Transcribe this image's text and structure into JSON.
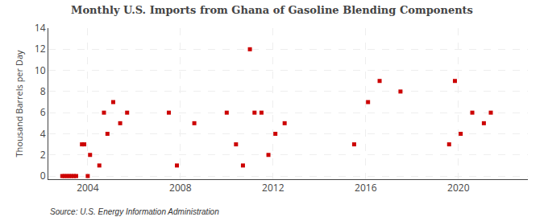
{
  "chart_data": {
    "type": "scatter",
    "title": "Monthly U.S. Imports from Ghana of Gasoline Blending Components",
    "ylabel": "Thousand Barrels per Day",
    "annotations": [
      "Source: U.S. Energy Information Administration"
    ],
    "color": "#cc0000",
    "marker": "square",
    "grid": true,
    "xlim": [
      2002.3,
      2023.0
    ],
    "ylim": [
      -0.3,
      14.0
    ],
    "xticks": [
      2004,
      2008,
      2012,
      2016,
      2020
    ],
    "yticks": [
      0,
      2,
      4,
      6,
      8,
      10,
      12,
      14
    ],
    "x": [
      2002.9,
      2003.0,
      2003.1,
      2003.2,
      2003.3,
      2003.4,
      2003.5,
      2003.75,
      2003.85,
      2004.0,
      2004.1,
      2004.5,
      2004.7,
      2004.85,
      2005.1,
      2005.4,
      2005.7,
      2007.5,
      2007.85,
      2008.6,
      2010.0,
      2010.4,
      2010.7,
      2011.0,
      2011.2,
      2011.5,
      2011.8,
      2012.1,
      2012.5,
      2015.5,
      2016.1,
      2016.6,
      2017.5,
      2019.6,
      2019.85,
      2020.1,
      2020.6,
      2021.1,
      2021.4
    ],
    "values": [
      0.0,
      0.0,
      0.0,
      0.0,
      0.0,
      0.0,
      0.0,
      3.0,
      3.0,
      0.0,
      2.0,
      1.0,
      6.0,
      4.0,
      7.0,
      5.0,
      6.0,
      6.0,
      1.0,
      5.0,
      6.0,
      3.0,
      1.0,
      12.0,
      6.0,
      6.0,
      2.0,
      4.0,
      5.0,
      3.0,
      7.0,
      9.0,
      8.0,
      3.0,
      9.0,
      4.0,
      6.0,
      5.0,
      6.0
    ]
  }
}
